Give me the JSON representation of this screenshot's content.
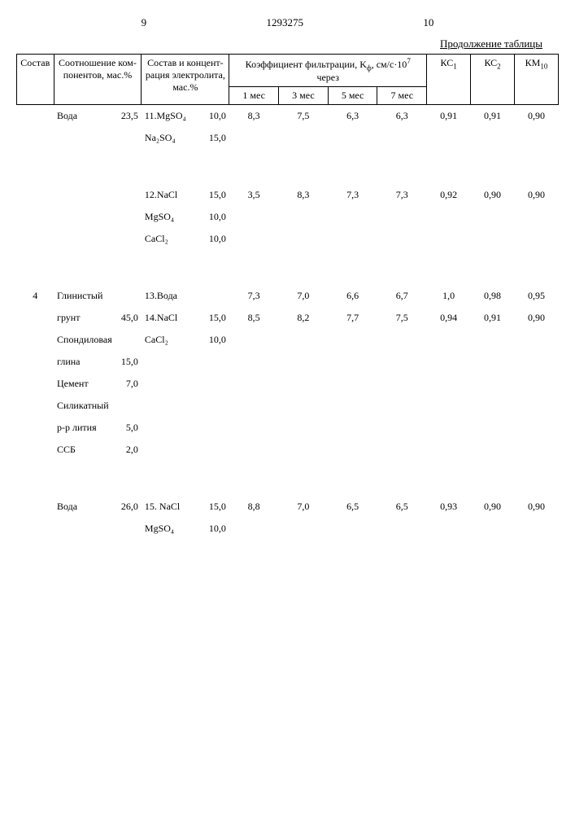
{
  "page": {
    "left_num": "9",
    "doc_num": "1293275",
    "right_num": "10",
    "continuation": "Продолжение таблицы"
  },
  "headers": {
    "sostav": "Состав",
    "ratio": "Соотношение ком-\nпонентов, мас.%",
    "electrolyte": "Состав и концент-\nрация электролита,\nмас.%",
    "kf": "Коэффициент фильтрации, K",
    "kf_unit": ", см/с·10",
    "cherez": "через",
    "m1": "1 мес",
    "m3": "3 мес",
    "m5": "5 мес",
    "m7": "7 мес",
    "kc1": "КС",
    "kc1_sub": "1",
    "kc2": "КС",
    "kc2_sub": "2",
    "km": "КМ",
    "km_sub": "10"
  },
  "rows": [
    {
      "sostav": "",
      "ratio_label": "Вода",
      "ratio_val": "23,5",
      "elec_label": "11.MgSO₄",
      "elec_val": "10,0",
      "m1": "8,3",
      "m3": "7,5",
      "m5": "6,3",
      "m7": "6,3",
      "kc1": "0,91",
      "kc2": "0,91",
      "km": "0,90"
    },
    {
      "sostav": "",
      "ratio_label": "",
      "ratio_val": "",
      "elec_label": "Na₂SO₄",
      "elec_val": "15,0",
      "m1": "",
      "m3": "",
      "m5": "",
      "m7": "",
      "kc1": "",
      "kc2": "",
      "km": ""
    },
    {
      "sostav": "",
      "ratio_label": "",
      "ratio_val": "",
      "elec_label": "12.NaCl",
      "elec_val": "15,0",
      "m1": "3,5",
      "m3": "8,3",
      "m5": "7,3",
      "m7": "7,3",
      "kc1": "0,92",
      "kc2": "0,90",
      "km": "0,90"
    },
    {
      "sostav": "",
      "ratio_label": "",
      "ratio_val": "",
      "elec_label": "MgSO₄",
      "elec_val": "10,0",
      "m1": "",
      "m3": "",
      "m5": "",
      "m7": "",
      "kc1": "",
      "kc2": "",
      "km": ""
    },
    {
      "sostav": "",
      "ratio_label": "",
      "ratio_val": "",
      "elec_label": "CaCl₂",
      "elec_val": "10,0",
      "m1": "",
      "m3": "",
      "m5": "",
      "m7": "",
      "kc1": "",
      "kc2": "",
      "km": ""
    },
    {
      "sostav": "4",
      "ratio_label": "Глинистый",
      "ratio_val": "",
      "elec_label": "13.Вода",
      "elec_val": "",
      "m1": "7,3",
      "m3": "7,0",
      "m5": "6,6",
      "m7": "6,7",
      "kc1": "1,0",
      "kc2": "0,98",
      "km": "0,95"
    },
    {
      "sostav": "",
      "ratio_label": "грунт",
      "ratio_val": "45,0",
      "elec_label": "14.NaCl",
      "elec_val": "15,0",
      "m1": "8,5",
      "m3": "8,2",
      "m5": "7,7",
      "m7": "7,5",
      "kc1": "0,94",
      "kc2": "0,91",
      "km": "0,90"
    },
    {
      "sostav": "",
      "ratio_label": "Спондиловая",
      "ratio_val": "",
      "elec_label": "CaCl₂",
      "elec_val": "10,0",
      "m1": "",
      "m3": "",
      "m5": "",
      "m7": "",
      "kc1": "",
      "kc2": "",
      "km": ""
    },
    {
      "sostav": "",
      "ratio_label": "глина",
      "ratio_val": "15,0",
      "elec_label": "",
      "elec_val": "",
      "m1": "",
      "m3": "",
      "m5": "",
      "m7": "",
      "kc1": "",
      "kc2": "",
      "km": ""
    },
    {
      "sostav": "",
      "ratio_label": "Цемент",
      "ratio_val": "7,0",
      "elec_label": "",
      "elec_val": "",
      "m1": "",
      "m3": "",
      "m5": "",
      "m7": "",
      "kc1": "",
      "kc2": "",
      "km": ""
    },
    {
      "sostav": "",
      "ratio_label": "Силикатный",
      "ratio_val": "",
      "elec_label": "",
      "elec_val": "",
      "m1": "",
      "m3": "",
      "m5": "",
      "m7": "",
      "kc1": "",
      "kc2": "",
      "km": ""
    },
    {
      "sostav": "",
      "ratio_label": "р-р лития",
      "ratio_val": "5,0",
      "elec_label": "",
      "elec_val": "",
      "m1": "",
      "m3": "",
      "m5": "",
      "m7": "",
      "kc1": "",
      "kc2": "",
      "km": ""
    },
    {
      "sostav": "",
      "ratio_label": "ССБ",
      "ratio_val": "2,0",
      "elec_label": "",
      "elec_val": "",
      "m1": "",
      "m3": "",
      "m5": "",
      "m7": "",
      "kc1": "",
      "kc2": "",
      "km": ""
    },
    {
      "sostav": "",
      "ratio_label": "Вода",
      "ratio_val": "26,0",
      "elec_label": "15. NaCl",
      "elec_val": "15,0",
      "m1": "8,8",
      "m3": "7,0",
      "m5": "6,5",
      "m7": "6,5",
      "kc1": "0,93",
      "kc2": "0,90",
      "km": "0,90"
    },
    {
      "sostav": "",
      "ratio_label": "",
      "ratio_val": "",
      "elec_label": "MgSO₄",
      "elec_val": "10,0",
      "m1": "",
      "m3": "",
      "m5": "",
      "m7": "",
      "kc1": "",
      "kc2": "",
      "km": ""
    }
  ]
}
